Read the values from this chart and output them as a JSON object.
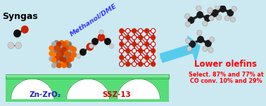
{
  "bg_color": "#cce8f0",
  "title_text": "Syngas",
  "title_color": "black",
  "methanol_text": "Methanol/DME",
  "methanol_color": "#3333ff",
  "lower_olefins_text": "Lower olefins",
  "lower_olefins_color": "#ff0000",
  "stats_line1": "Select. 87% and 77% at",
  "stats_line2": "CO conv. 10% and 29%",
  "stats_color": "#ff0000",
  "label1": "Zn-ZrO₂",
  "label1_color": "#2020bb",
  "label2": "SSZ-13",
  "label2_color": "#cc0000",
  "bridge_color": "#55dd77",
  "bridge_light": "#88eebb",
  "bridge_edge_color": "#33aa55",
  "arrow_color": "#55ccee",
  "figsize": [
    3.78,
    1.51
  ],
  "dpi": 100
}
